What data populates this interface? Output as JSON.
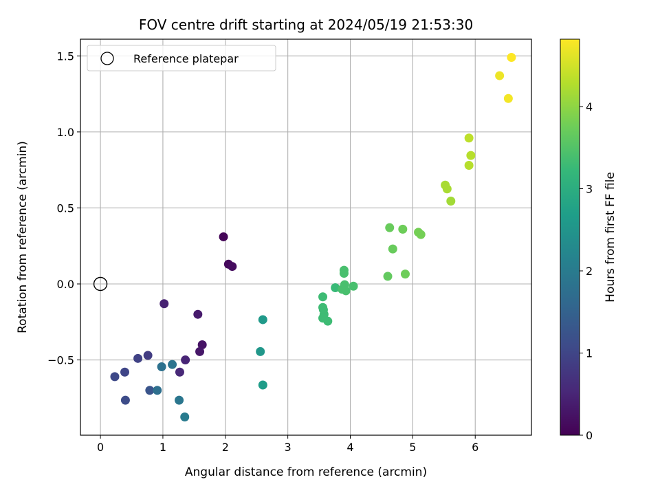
{
  "chart_data": {
    "type": "scatter",
    "title": "FOV centre drift starting at 2024/05/19 21:53:30",
    "xlabel": "Angular distance from reference (arcmin)",
    "ylabel": "Rotation from reference (arcmin)",
    "xlim": [
      -0.32,
      6.9
    ],
    "ylim": [
      -0.995,
      1.61
    ],
    "xticks": [
      0,
      1,
      2,
      3,
      4,
      5,
      6
    ],
    "yticks": [
      -0.5,
      0.0,
      0.5,
      1.0,
      1.5
    ],
    "xtick_labels": [
      "0",
      "1",
      "2",
      "3",
      "4",
      "5",
      "6"
    ],
    "ytick_labels": [
      "−0.5",
      "0.0",
      "0.5",
      "1.0",
      "1.5"
    ],
    "grid": true,
    "legend": {
      "position": "top-left",
      "entries": [
        "Reference platepar"
      ]
    },
    "reference_point": {
      "x": 0.0,
      "y": 0.0
    },
    "colorbar": {
      "label": "Hours from first FF file",
      "colormap": "viridis",
      "range": [
        0,
        4.82
      ],
      "ticks": [
        0,
        1,
        2,
        3,
        4
      ],
      "tick_labels": [
        "0",
        "1",
        "2",
        "3",
        "4"
      ]
    },
    "points": [
      {
        "x": 1.97,
        "y": 0.31,
        "c": 0.05
      },
      {
        "x": 2.05,
        "y": 0.13,
        "c": 0.1
      },
      {
        "x": 2.11,
        "y": 0.115,
        "c": 0.15
      },
      {
        "x": 1.63,
        "y": -0.4,
        "c": 0.25
      },
      {
        "x": 1.59,
        "y": -0.445,
        "c": 0.3
      },
      {
        "x": 1.56,
        "y": -0.2,
        "c": 0.35
      },
      {
        "x": 1.02,
        "y": -0.13,
        "c": 0.45
      },
      {
        "x": 1.36,
        "y": -0.5,
        "c": 0.5
      },
      {
        "x": 1.27,
        "y": -0.58,
        "c": 0.55
      },
      {
        "x": 0.76,
        "y": -0.47,
        "c": 0.85
      },
      {
        "x": 0.6,
        "y": -0.49,
        "c": 0.95
      },
      {
        "x": 0.39,
        "y": -0.58,
        "c": 1.0
      },
      {
        "x": 0.23,
        "y": -0.61,
        "c": 1.05
      },
      {
        "x": 0.4,
        "y": -0.765,
        "c": 1.1
      },
      {
        "x": 0.79,
        "y": -0.7,
        "c": 1.25
      },
      {
        "x": 0.91,
        "y": -0.7,
        "c": 1.75
      },
      {
        "x": 0.98,
        "y": -0.545,
        "c": 1.8
      },
      {
        "x": 1.15,
        "y": -0.53,
        "c": 1.85
      },
      {
        "x": 1.26,
        "y": -0.765,
        "c": 1.9
      },
      {
        "x": 1.35,
        "y": -0.875,
        "c": 2.0
      },
      {
        "x": 2.56,
        "y": -0.445,
        "c": 2.55
      },
      {
        "x": 2.6,
        "y": -0.235,
        "c": 2.6
      },
      {
        "x": 2.6,
        "y": -0.665,
        "c": 2.65
      },
      {
        "x": 3.56,
        "y": -0.085,
        "c": 3.3
      },
      {
        "x": 3.56,
        "y": -0.155,
        "c": 3.3
      },
      {
        "x": 3.57,
        "y": -0.17,
        "c": 3.3
      },
      {
        "x": 3.58,
        "y": -0.2,
        "c": 3.3
      },
      {
        "x": 3.56,
        "y": -0.225,
        "c": 3.3
      },
      {
        "x": 3.64,
        "y": -0.245,
        "c": 3.3
      },
      {
        "x": 3.76,
        "y": -0.025,
        "c": 3.25
      },
      {
        "x": 3.87,
        "y": -0.035,
        "c": 3.4
      },
      {
        "x": 3.9,
        "y": 0.09,
        "c": 3.4
      },
      {
        "x": 3.9,
        "y": 0.07,
        "c": 3.4
      },
      {
        "x": 3.91,
        "y": -0.005,
        "c": 3.4
      },
      {
        "x": 3.93,
        "y": -0.045,
        "c": 3.4
      },
      {
        "x": 4.05,
        "y": -0.015,
        "c": 3.4
      },
      {
        "x": 4.6,
        "y": 0.05,
        "c": 3.65
      },
      {
        "x": 4.63,
        "y": 0.37,
        "c": 3.7
      },
      {
        "x": 4.68,
        "y": 0.23,
        "c": 3.7
      },
      {
        "x": 4.84,
        "y": 0.36,
        "c": 3.75
      },
      {
        "x": 4.88,
        "y": 0.065,
        "c": 3.75
      },
      {
        "x": 5.09,
        "y": 0.34,
        "c": 3.8
      },
      {
        "x": 5.13,
        "y": 0.325,
        "c": 3.8
      },
      {
        "x": 5.52,
        "y": 0.65,
        "c": 4.2
      },
      {
        "x": 5.55,
        "y": 0.625,
        "c": 4.2
      },
      {
        "x": 5.61,
        "y": 0.545,
        "c": 4.15
      },
      {
        "x": 5.9,
        "y": 0.96,
        "c": 4.35
      },
      {
        "x": 5.9,
        "y": 0.78,
        "c": 4.3
      },
      {
        "x": 5.93,
        "y": 0.845,
        "c": 4.3
      },
      {
        "x": 6.39,
        "y": 1.37,
        "c": 4.7
      },
      {
        "x": 6.53,
        "y": 1.22,
        "c": 4.75
      },
      {
        "x": 6.58,
        "y": 1.49,
        "c": 4.82
      }
    ]
  }
}
